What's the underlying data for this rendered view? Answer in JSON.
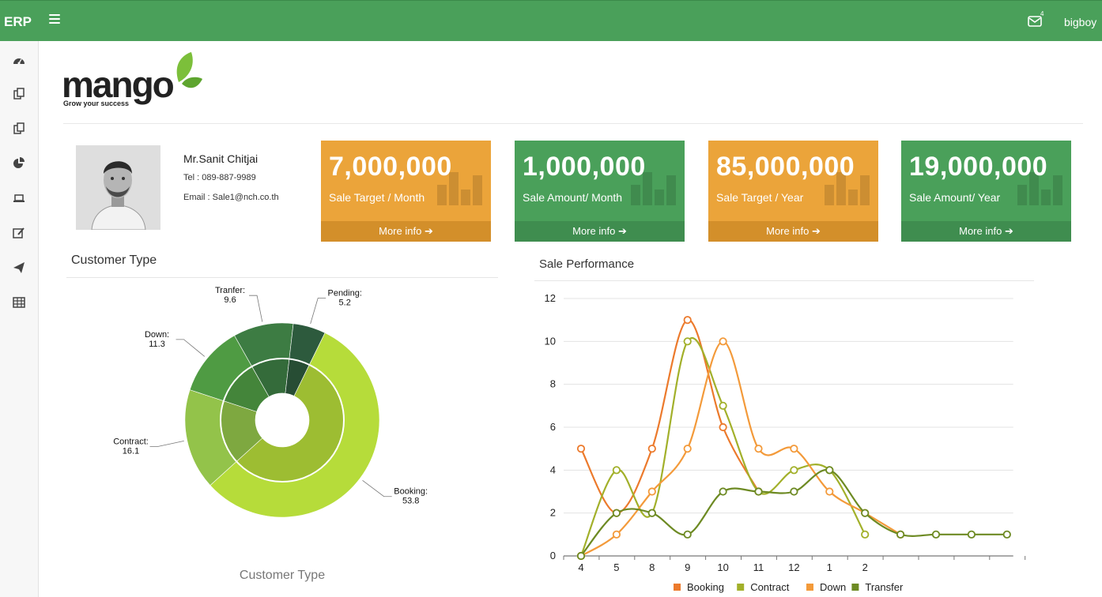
{
  "header": {
    "brand": "ERP",
    "username": "bigboy",
    "mail_badge": "4"
  },
  "sidebar": {
    "items": [
      "dashboard-icon",
      "copy-icon",
      "copy-icon",
      "pie-chart-icon",
      "laptop-icon",
      "edit-icon",
      "send-icon",
      "table-icon"
    ]
  },
  "logo": {
    "text": "mango",
    "tagline": "Grow your success"
  },
  "profile": {
    "name": "Mr.Sanit Chitjai",
    "tel": "Tel : 089-887-9989",
    "email": "Email : Sale1@nch.co.th"
  },
  "kpis": [
    {
      "value": "7,000,000",
      "label": "Sale Target / Month",
      "link": "More info",
      "color": "#eba43a"
    },
    {
      "value": "1,000,000",
      "label": "Sale Amount/ Month",
      "link": "More info",
      "color": "#4aa05a"
    },
    {
      "value": "85,000,000",
      "label": "Sale Target / Year",
      "link": "More info",
      "color": "#eba43a"
    },
    {
      "value": "19,000,000",
      "label": "Sale Amount/ Year",
      "link": "More info",
      "color": "#4aa05a"
    }
  ],
  "customer_panel": {
    "title": "Customer Type",
    "subtitle": "Customer Type"
  },
  "sale_panel": {
    "title": "Sale Performance"
  },
  "chart_data": [
    {
      "type": "pie",
      "title": "Customer Type",
      "slices": [
        {
          "name": "Booking",
          "value": 53.8,
          "color": "#b6dc3a"
        },
        {
          "name": "Contract",
          "value": 16.1,
          "color": "#93c34a"
        },
        {
          "name": "Down",
          "value": 11.3,
          "color": "#4f9b43"
        },
        {
          "name": "Tranfer",
          "value": 9.6,
          "color": "#3d7c43"
        },
        {
          "name": "Pending",
          "value": 5.2,
          "color": "#2d5a3d"
        }
      ]
    },
    {
      "type": "line",
      "title": "Sale Performance",
      "categories": [
        "4",
        "5",
        "8",
        "9",
        "10",
        "11",
        "12",
        "1",
        "2",
        "",
        "",
        "",
        ""
      ],
      "ylim": [
        0,
        12
      ],
      "yticks": [
        0,
        2,
        4,
        6,
        8,
        10,
        12
      ],
      "grid": true,
      "legend": "bottom",
      "series": [
        {
          "name": "Booking",
          "color": "#ec7a2c",
          "values": [
            5,
            2,
            5,
            11,
            6,
            3,
            null,
            null,
            null,
            null,
            null,
            null,
            null
          ]
        },
        {
          "name": "Contract",
          "color": "#a2b02a",
          "values": [
            0,
            4,
            2,
            10,
            7,
            3,
            4,
            4,
            1,
            null,
            null,
            null,
            null
          ]
        },
        {
          "name": "Down",
          "color": "#f39a3a",
          "values": [
            0,
            1,
            3,
            5,
            10,
            5,
            5,
            3,
            2,
            1,
            null,
            null,
            null
          ]
        },
        {
          "name": "Transfer",
          "color": "#6d8a23",
          "values": [
            0,
            2,
            2,
            1,
            3,
            3,
            3,
            4,
            2,
            1,
            1,
            1,
            1
          ]
        }
      ]
    }
  ]
}
